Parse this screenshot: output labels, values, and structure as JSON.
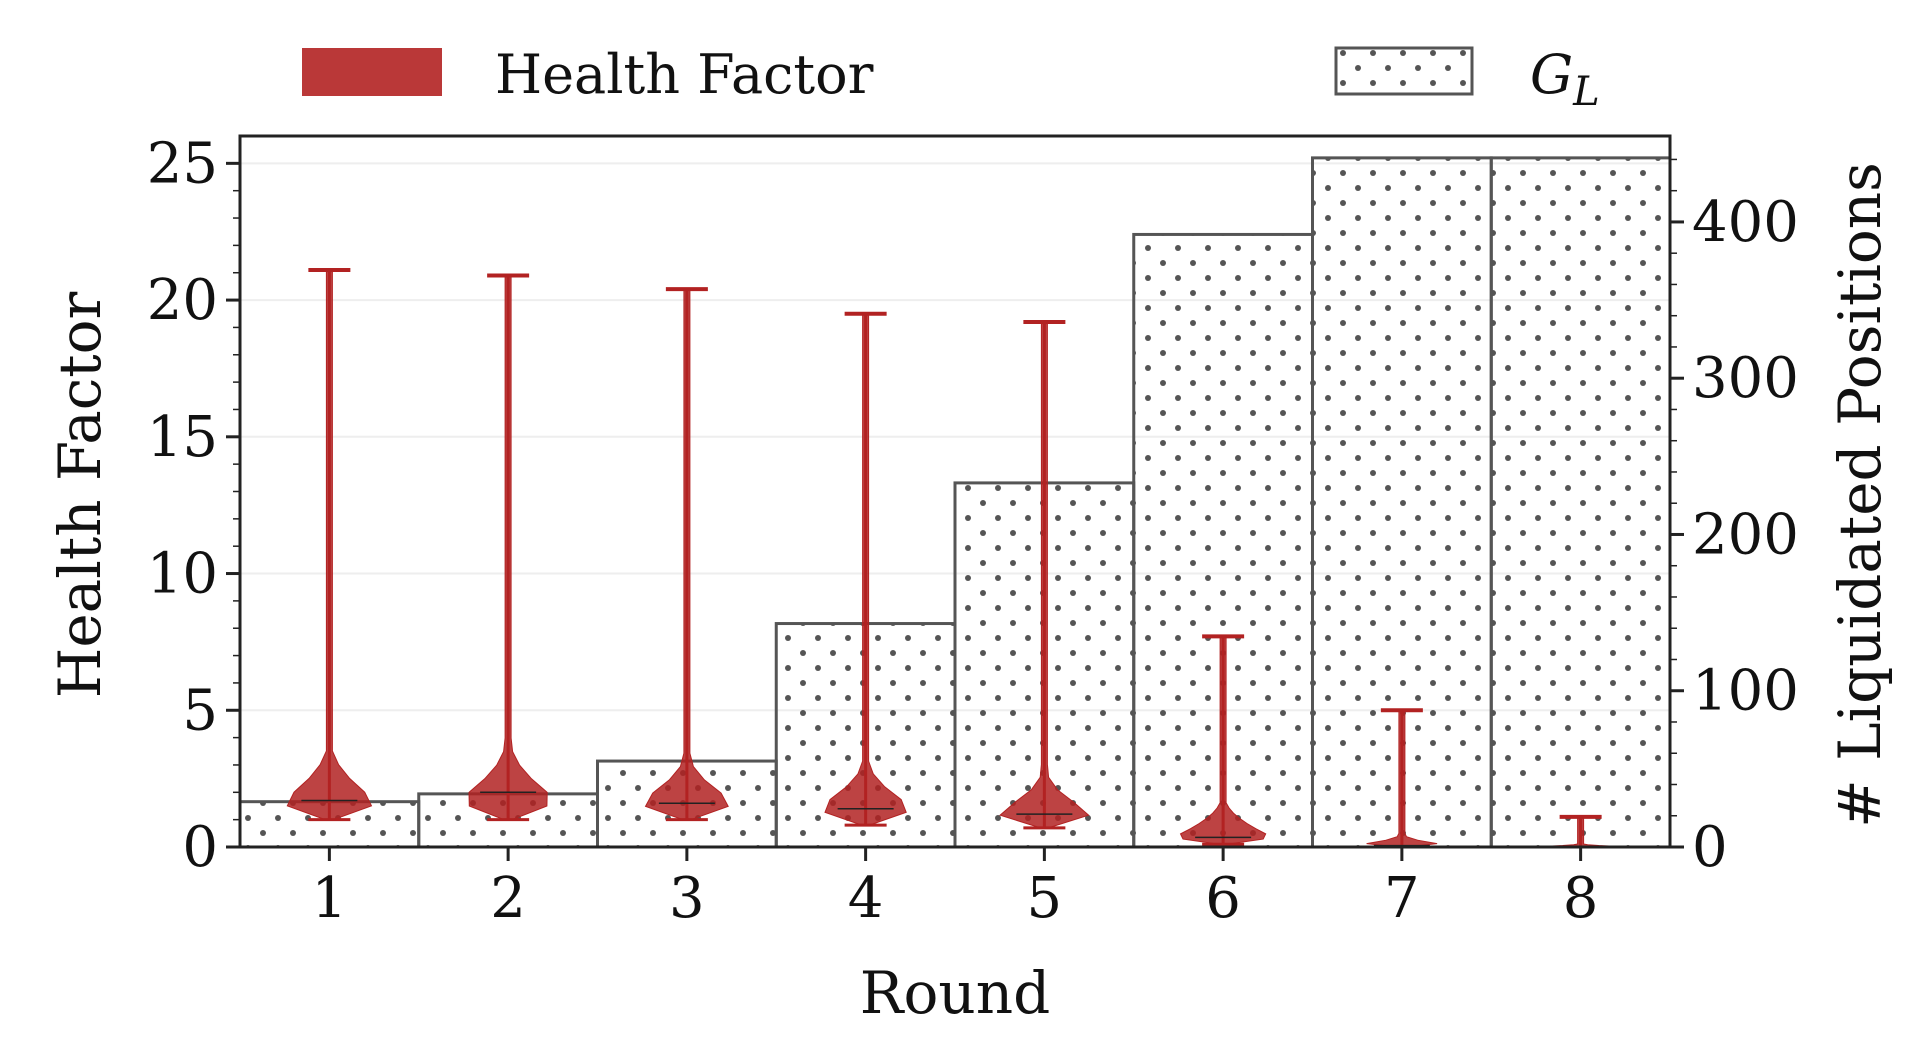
{
  "chart_data": {
    "type": "violin+bar",
    "xlabel": "Round",
    "ylabel_left": "Health Factor",
    "ylabel_right": "# Liquidated Positions",
    "categories": [
      "1",
      "2",
      "3",
      "4",
      "5",
      "6",
      "7",
      "8"
    ],
    "ylim_left": [
      0,
      26
    ],
    "ylim_right": [
      0,
      455
    ],
    "yticks_left": [
      "0",
      "5",
      "10",
      "15",
      "20",
      "25"
    ],
    "yticks_right": [
      "0",
      "100",
      "200",
      "300",
      "400"
    ],
    "legend": {
      "placement": "top",
      "health_label": "Health Factor",
      "gl_label_main": "G",
      "gl_label_sub": "L"
    },
    "colors": {
      "violin": "#b22222",
      "bar_edge": "#555555",
      "dots": "#555555"
    },
    "bars_liquidated": [
      29,
      34,
      55,
      143,
      233,
      392,
      441,
      441
    ],
    "violins": [
      {
        "round": "1",
        "min": 1.0,
        "max": 21.1,
        "median": 1.7,
        "body_top": 3.5,
        "peak": 1.6
      },
      {
        "round": "2",
        "min": 1.0,
        "max": 20.9,
        "median": 2.0,
        "body_top": 3.6,
        "peak": 1.7
      },
      {
        "round": "3",
        "min": 1.0,
        "max": 20.4,
        "median": 1.6,
        "body_top": 3.2,
        "peak": 1.6
      },
      {
        "round": "4",
        "min": 0.8,
        "max": 19.5,
        "median": 1.4,
        "body_top": 3.0,
        "peak": 1.4
      },
      {
        "round": "5",
        "min": 0.7,
        "max": 19.2,
        "median": 1.2,
        "body_top": 2.6,
        "peak": 1.2
      },
      {
        "round": "6",
        "min": 0.1,
        "max": 7.7,
        "median": 0.35,
        "body_top": 1.6,
        "peak": 0.35
      },
      {
        "round": "7",
        "min": 0.0,
        "max": 5.0,
        "median": 0.05,
        "body_top": 0.4,
        "peak": 0.05
      },
      {
        "round": "8",
        "min": 0.0,
        "max": 1.1,
        "median": 0.0,
        "body_top": 0.1,
        "peak": 0.0
      }
    ],
    "grid": "faint horizontal"
  }
}
